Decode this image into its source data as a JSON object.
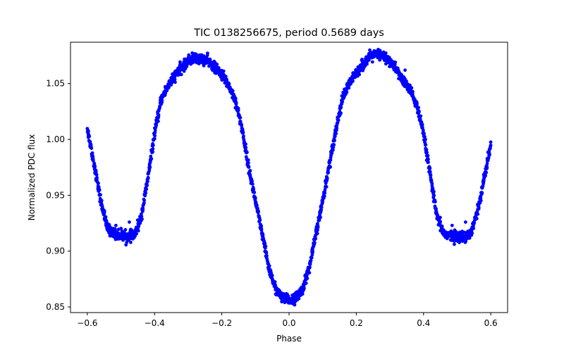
{
  "chart_data": {
    "type": "scatter",
    "title": "TIC 0138256675, period 0.5689 days",
    "xlabel": "Phase",
    "ylabel": "Normalized PDC flux",
    "xlim": [
      -0.65,
      0.65
    ],
    "ylim": [
      0.845,
      1.087
    ],
    "xticks": [
      -0.6,
      -0.4,
      -0.2,
      0.0,
      0.2,
      0.4,
      0.6
    ],
    "xtick_labels": [
      "−0.6",
      "−0.4",
      "−0.2",
      "0.0",
      "0.2",
      "0.4",
      "0.6"
    ],
    "yticks": [
      0.85,
      0.9,
      0.95,
      1.0,
      1.05
    ],
    "ytick_labels": [
      "0.85",
      "0.90",
      "0.95",
      "1.00",
      "1.05"
    ],
    "grid": false,
    "marker_color": "#0000ff",
    "series": [
      {
        "name": "PDC flux",
        "curve": {
          "x": [
            -0.6,
            -0.58,
            -0.56,
            -0.54,
            -0.52,
            -0.5,
            -0.48,
            -0.46,
            -0.44,
            -0.42,
            -0.4,
            -0.38,
            -0.36,
            -0.34,
            -0.32,
            -0.3,
            -0.28,
            -0.26,
            -0.24,
            -0.22,
            -0.2,
            -0.18,
            -0.16,
            -0.14,
            -0.12,
            -0.1,
            -0.08,
            -0.06,
            -0.04,
            -0.02,
            0.0,
            0.02,
            0.04,
            0.06,
            0.08,
            0.1,
            0.12,
            0.14,
            0.16,
            0.18,
            0.2,
            0.22,
            0.24,
            0.26,
            0.28,
            0.3,
            0.32,
            0.34,
            0.36,
            0.38,
            0.4,
            0.42,
            0.44,
            0.46,
            0.48,
            0.5,
            0.52,
            0.54,
            0.56,
            0.58,
            0.6
          ],
          "y": [
            1.01,
            0.978,
            0.945,
            0.92,
            0.916,
            0.914,
            0.913,
            0.914,
            0.93,
            0.965,
            1.005,
            1.036,
            1.048,
            1.057,
            1.064,
            1.07,
            1.073,
            1.072,
            1.07,
            1.064,
            1.058,
            1.049,
            1.035,
            1.01,
            0.975,
            0.945,
            0.915,
            0.885,
            0.866,
            0.858,
            0.856,
            0.858,
            0.866,
            0.885,
            0.915,
            0.945,
            0.978,
            1.01,
            1.038,
            1.05,
            1.06,
            1.067,
            1.074,
            1.076,
            1.075,
            1.07,
            1.062,
            1.052,
            1.045,
            1.03,
            1.005,
            0.968,
            0.93,
            0.916,
            0.914,
            0.913,
            0.913,
            0.916,
            0.935,
            0.965,
            0.995
          ]
        },
        "outliers": [
          {
            "x": -0.515,
            "y": 0.923
          },
          {
            "x": -0.475,
            "y": 0.926
          },
          {
            "x": 0.345,
            "y": 1.062
          },
          {
            "x": 0.485,
            "y": 0.923
          },
          {
            "x": 0.525,
            "y": 0.926
          }
        ]
      }
    ]
  }
}
